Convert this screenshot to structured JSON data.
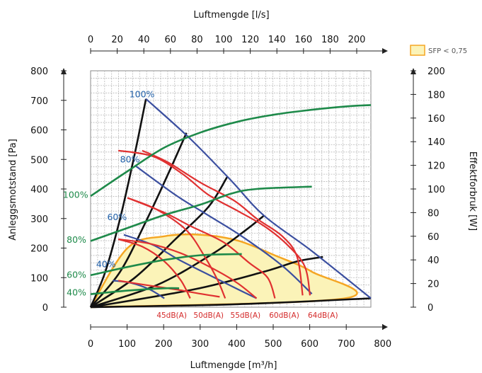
{
  "chart_data": {
    "type": "line",
    "title": "",
    "x_top_label": "Luftmengde [l/s]",
    "x_bottom_label": "Luftmengde [m³/h]",
    "y_left_label": "Anleggsmotstand [Pa]",
    "y_right_label": "Effektforbruk [W]",
    "x_bottom_ticks": [
      "0",
      "100",
      "200",
      "300",
      "400",
      "500",
      "600",
      "700",
      "800"
    ],
    "x_top_ticks": [
      "0",
      "20",
      "40",
      "60",
      "80",
      "100",
      "120",
      "140",
      "160",
      "180",
      "200"
    ],
    "y_left_ticks": [
      "0",
      "100",
      "200",
      "300",
      "400",
      "500",
      "600",
      "700",
      "800"
    ],
    "y_right_ticks": [
      "0",
      "20",
      "40",
      "60",
      "80",
      "100",
      "120",
      "140",
      "160",
      "180",
      "200"
    ],
    "xlim": [
      0,
      800
    ],
    "ylim_left": [
      0,
      800
    ],
    "ylim_right": [
      0,
      200
    ],
    "grid": true,
    "legend": {
      "position": "top-right",
      "label": "SFP < 0,75"
    },
    "colors": {
      "fan_curve": "#3b4fa0",
      "sound_curve": "#e03131",
      "power_curve": "#1e8a4a",
      "system_curve": "#111111",
      "sfp_fill": "#fbf3b8",
      "sfp_border": "#f5a623",
      "fan_label": "#1f5fa8",
      "power_label": "#1e8a4a"
    },
    "fan_curves": [
      {
        "name": "100%",
        "points": [
          [
            150,
            705
          ],
          [
            270,
            570
          ],
          [
            380,
            430
          ],
          [
            470,
            310
          ],
          [
            600,
            190
          ],
          [
            760,
            30
          ]
        ]
      },
      {
        "name": "80%",
        "points": [
          [
            120,
            480
          ],
          [
            230,
            380
          ],
          [
            320,
            310
          ],
          [
            410,
            240
          ],
          [
            520,
            140
          ],
          [
            600,
            45
          ]
        ]
      },
      {
        "name": "60%",
        "points": [
          [
            90,
            245
          ],
          [
            170,
            210
          ],
          [
            240,
            160
          ],
          [
            320,
            110
          ],
          [
            400,
            60
          ],
          [
            450,
            30
          ]
        ]
      },
      {
        "name": "40%",
        "points": [
          [
            60,
            90
          ],
          [
            110,
            82
          ],
          [
            160,
            60
          ],
          [
            200,
            30
          ]
        ]
      }
    ],
    "power_curves": [
      {
        "name": "100%",
        "points": [
          [
            0,
            94
          ],
          [
            100,
            115
          ],
          [
            200,
            135
          ],
          [
            300,
            148
          ],
          [
            400,
            157
          ],
          [
            500,
            163
          ],
          [
            600,
            167
          ],
          [
            700,
            170
          ],
          [
            760,
            171
          ]
        ]
      },
      {
        "name": "80%",
        "points": [
          [
            0,
            56
          ],
          [
            100,
            67
          ],
          [
            200,
            78
          ],
          [
            300,
            87
          ],
          [
            380,
            96
          ],
          [
            450,
            100
          ],
          [
            600,
            102
          ]
        ]
      },
      {
        "name": "60%",
        "points": [
          [
            0,
            27
          ],
          [
            100,
            34
          ],
          [
            200,
            40
          ],
          [
            300,
            44
          ],
          [
            410,
            45
          ]
        ]
      },
      {
        "name": "40%",
        "points": [
          [
            0,
            11
          ],
          [
            100,
            14
          ],
          [
            200,
            16
          ],
          [
            240,
            16
          ]
        ]
      }
    ],
    "sound_curves": [
      {
        "name": "45dB(A)",
        "points": [
          [
            75,
            230
          ],
          [
            140,
            205
          ],
          [
            200,
            155
          ],
          [
            245,
            90
          ],
          [
            270,
            30
          ]
        ]
      },
      {
        "name": "50dB(A)",
        "points": [
          [
            100,
            370
          ],
          [
            180,
            330
          ],
          [
            260,
            260
          ],
          [
            310,
            170
          ],
          [
            345,
            90
          ],
          [
            365,
            30
          ]
        ]
      },
      {
        "name": "55dB(A)",
        "points": [
          [
            75,
            90
          ],
          [
            150,
            75
          ],
          [
            230,
            60
          ],
          [
            300,
            45
          ],
          [
            350,
            35
          ]
        ]
      },
      {
        "name": "60dB(A)",
        "points": [
          [
            75,
            230
          ],
          [
            160,
            215
          ],
          [
            250,
            180
          ],
          [
            340,
            125
          ],
          [
            400,
            80
          ],
          [
            450,
            30
          ]
        ]
      },
      {
        "name": "64dB(A)",
        "points": [
          [
            75,
            530
          ],
          [
            170,
            510
          ],
          [
            250,
            450
          ],
          [
            320,
            380
          ],
          [
            400,
            325
          ],
          [
            470,
            275
          ],
          [
            530,
            215
          ],
          [
            580,
            140
          ],
          [
            595,
            40
          ]
        ]
      }
    ],
    "extra_sound_curves": [
      {
        "points": [
          [
            140,
            530
          ],
          [
            210,
            490
          ],
          [
            300,
            420
          ],
          [
            390,
            360
          ],
          [
            450,
            300
          ],
          [
            520,
            240
          ],
          [
            560,
            170
          ],
          [
            575,
            40
          ]
        ]
      },
      {
        "points": [
          [
            100,
            370
          ],
          [
            200,
            320
          ],
          [
            270,
            275
          ],
          [
            360,
            220
          ],
          [
            430,
            150
          ],
          [
            480,
            100
          ],
          [
            500,
            30
          ]
        ]
      }
    ],
    "system_curves": [
      [
        [
          0,
          0
        ],
        [
          40,
          120
        ],
        [
          80,
          300
        ],
        [
          120,
          520
        ],
        [
          150,
          705
        ]
      ],
      [
        [
          0,
          0
        ],
        [
          80,
          120
        ],
        [
          150,
          290
        ],
        [
          210,
          450
        ],
        [
          260,
          590
        ]
      ],
      [
        [
          0,
          0
        ],
        [
          120,
          100
        ],
        [
          230,
          230
        ],
        [
          320,
          340
        ],
        [
          370,
          440
        ]
      ],
      [
        [
          0,
          0
        ],
        [
          180,
          75
        ],
        [
          330,
          180
        ],
        [
          420,
          260
        ],
        [
          470,
          310
        ]
      ],
      [
        [
          0,
          0
        ],
        [
          280,
          60
        ],
        [
          470,
          120
        ],
        [
          560,
          155
        ],
        [
          630,
          170
        ]
      ],
      [
        [
          0,
          0
        ],
        [
          400,
          10
        ],
        [
          760,
          30
        ]
      ]
    ],
    "sfp_region": [
      [
        0,
        0
      ],
      [
        100,
        200
      ],
      [
        200,
        240
      ],
      [
        300,
        245
      ],
      [
        400,
        225
      ],
      [
        500,
        175
      ],
      [
        600,
        120
      ],
      [
        690,
        30
      ],
      [
        0,
        0
      ]
    ],
    "db_labels": [
      "45dB(A)",
      "50dB(A)",
      "55dB(A)",
      "60dB(A)",
      "64dB(A)"
    ],
    "db_label_x": [
      220,
      320,
      420,
      525,
      630
    ],
    "fan_labels": [
      {
        "text": "100%",
        "x": 105,
        "y": 710
      },
      {
        "text": "80%",
        "x": 80,
        "y": 490
      },
      {
        "text": "60%",
        "x": 45,
        "y": 295
      },
      {
        "text": "40%",
        "x": 15,
        "y": 135
      }
    ],
    "power_labels": [
      {
        "text": "100%",
        "x": -75,
        "y": 370
      },
      {
        "text": "80%",
        "x": -65,
        "y": 218
      },
      {
        "text": "60%",
        "x": -65,
        "y": 100
      },
      {
        "text": "40%",
        "x": -65,
        "y": 40
      }
    ]
  }
}
